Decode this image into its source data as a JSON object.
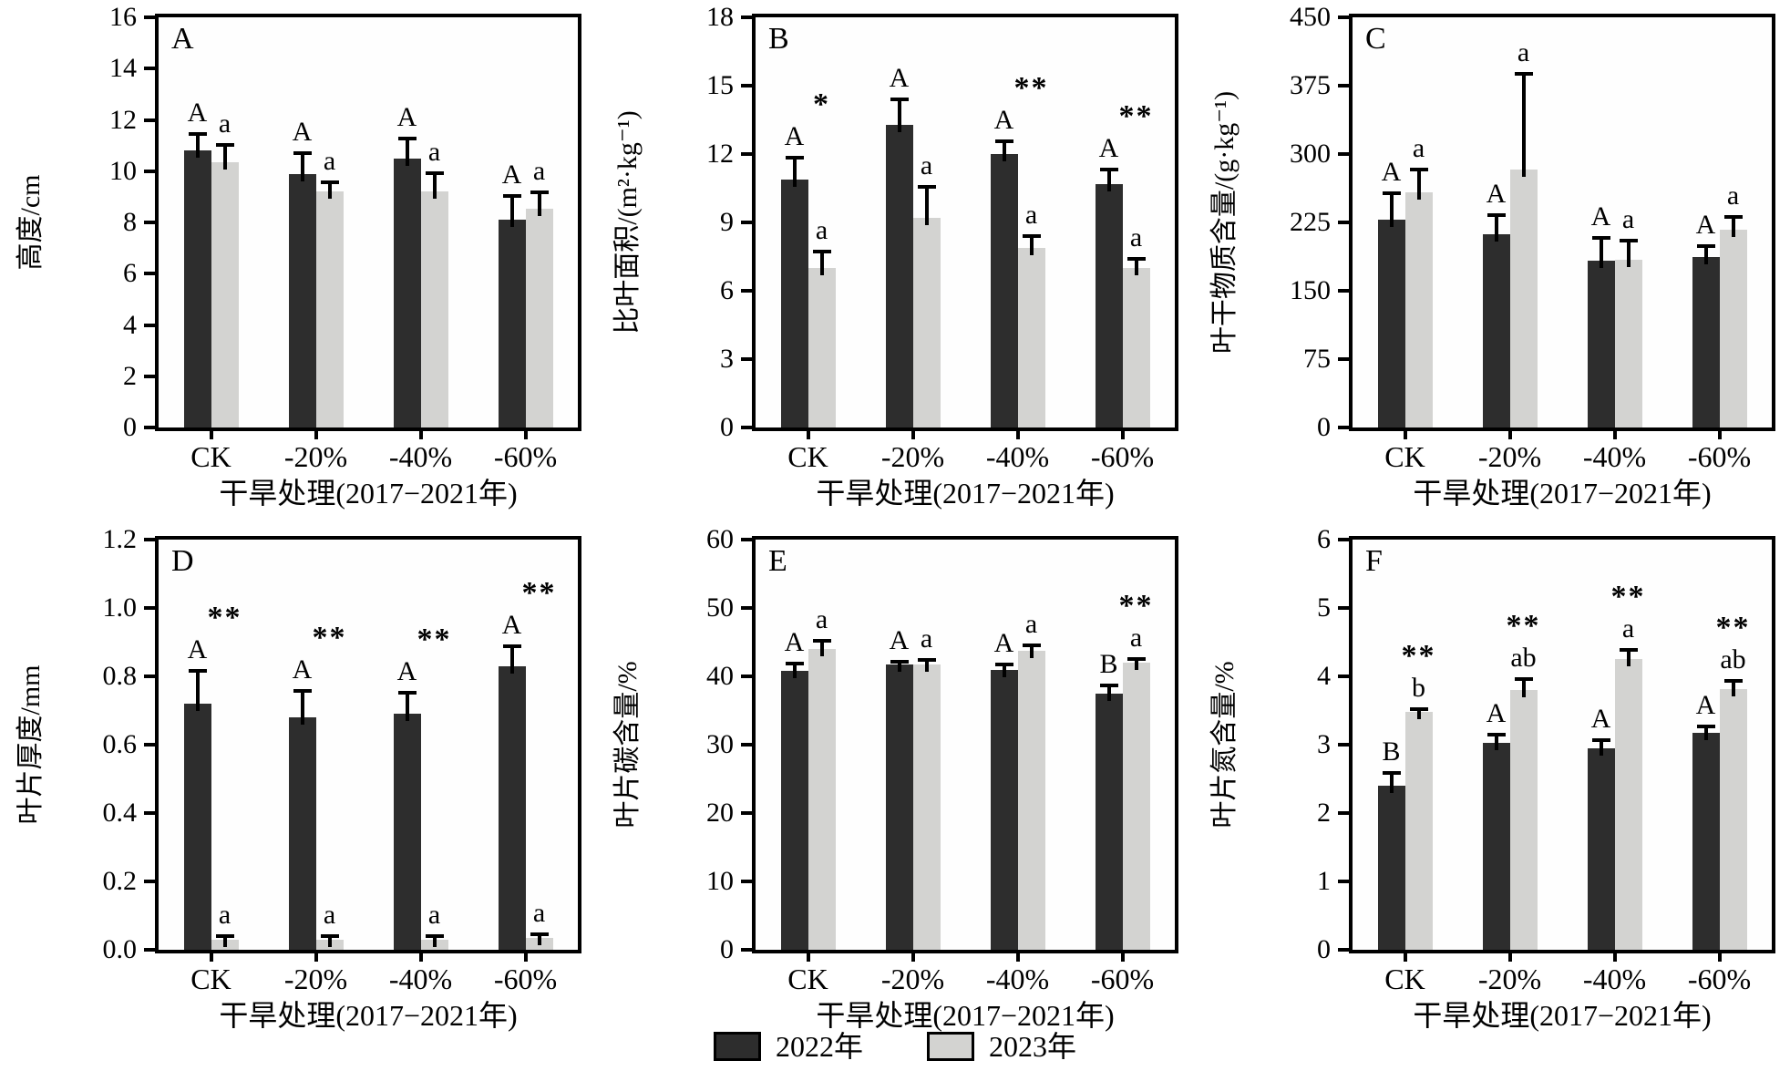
{
  "figure_title": "",
  "colors": {
    "bar_dark": "#2d2d2d",
    "bar_light": "#d3d3d1",
    "axis": "#000000",
    "background": "#ffffff"
  },
  "legend": {
    "items": [
      {
        "label": "2022年",
        "color": "#2d2d2d"
      },
      {
        "label": "2023年",
        "color": "#d3d3d1"
      }
    ]
  },
  "chart_data": [
    {
      "type": "bar",
      "panel_letter": "A",
      "ylabel": "高度/cm",
      "xlabel": "干旱处理(2017−2021年)",
      "ymax": 16,
      "yticks": [
        "0",
        "2",
        "4",
        "6",
        "8",
        "10",
        "12",
        "14",
        "16"
      ],
      "categories": [
        "CK",
        "-20%",
        "-40%",
        "-60%"
      ],
      "series": [
        {
          "name": "2022年",
          "values": [
            10.8,
            9.9,
            10.5,
            8.1
          ],
          "errors": [
            0.7,
            0.85,
            0.8,
            0.95
          ],
          "letters": [
            "A",
            "A",
            "A",
            "A"
          ]
        },
        {
          "name": "2023年",
          "values": [
            10.35,
            9.2,
            9.2,
            8.55
          ],
          "errors": [
            0.7,
            0.4,
            0.75,
            0.65
          ],
          "letters": [
            "a",
            "a",
            "a",
            "a"
          ]
        }
      ],
      "stars": [
        "",
        "",
        "",
        ""
      ]
    },
    {
      "type": "bar",
      "panel_letter": "B",
      "ylabel": "比叶面积/(m²·kg⁻¹)",
      "xlabel": "干旱处理(2017−2021年)",
      "ymax": 18,
      "yticks": [
        "0",
        "3",
        "6",
        "9",
        "12",
        "15",
        "18"
      ],
      "categories": [
        "CK",
        "-20%",
        "-40%",
        "-60%"
      ],
      "series": [
        {
          "name": "2022年",
          "values": [
            10.9,
            13.3,
            12.0,
            10.7
          ],
          "errors": [
            1.0,
            1.15,
            0.6,
            0.65
          ],
          "letters": [
            "A",
            "A",
            "A",
            "A"
          ]
        },
        {
          "name": "2023年",
          "values": [
            7.0,
            9.2,
            7.9,
            7.0
          ],
          "errors": [
            0.75,
            1.4,
            0.55,
            0.45
          ],
          "letters": [
            "a",
            "a",
            "a",
            "a"
          ]
        }
      ],
      "stars": [
        "*",
        "",
        "**",
        "**"
      ]
    },
    {
      "type": "bar",
      "panel_letter": "C",
      "ylabel": "叶干物质含量/(g·kg⁻¹)",
      "xlabel": "干旱处理(2017−2021年)",
      "ymax": 450,
      "yticks": [
        "0",
        "75",
        "150",
        "225",
        "300",
        "375",
        "450"
      ],
      "categories": [
        "CK",
        "-20%",
        "-40%",
        "-60%"
      ],
      "series": [
        {
          "name": "2022年",
          "values": [
            228,
            212,
            183,
            187
          ],
          "errors": [
            30,
            22,
            26,
            13
          ],
          "letters": [
            "A",
            "A",
            "A",
            "A"
          ]
        },
        {
          "name": "2023年",
          "values": [
            258,
            283,
            184,
            217
          ],
          "errors": [
            26,
            106,
            22,
            15
          ],
          "letters": [
            "a",
            "a",
            "a",
            "a"
          ]
        }
      ],
      "stars": [
        "",
        "",
        "",
        ""
      ]
    },
    {
      "type": "bar",
      "panel_letter": "D",
      "ylabel": "叶片厚度/mm",
      "xlabel": "干旱处理(2017−2021年)",
      "ymax": 1.2,
      "yticks": [
        "0.0",
        "0.2",
        "0.4",
        "0.6",
        "0.8",
        "1.0",
        "1.2"
      ],
      "categories": [
        "CK",
        "-20%",
        "-40%",
        "-60%"
      ],
      "series": [
        {
          "name": "2022年",
          "values": [
            0.72,
            0.68,
            0.69,
            0.83
          ],
          "errors": [
            0.1,
            0.08,
            0.065,
            0.06
          ],
          "letters": [
            "A",
            "A",
            "A",
            "A"
          ]
        },
        {
          "name": "2023年",
          "values": [
            0.03,
            0.03,
            0.03,
            0.035
          ],
          "errors": [
            0.012,
            0.012,
            0.012,
            0.012
          ],
          "letters": [
            "a",
            "a",
            "a",
            "a"
          ]
        }
      ],
      "stars": [
        "**",
        "**",
        "**",
        "**"
      ]
    },
    {
      "type": "bar",
      "panel_letter": "E",
      "ylabel": "叶片碳含量/%",
      "xlabel": "干旱处理(2017−2021年)",
      "ymax": 60,
      "yticks": [
        "0",
        "10",
        "20",
        "30",
        "40",
        "50",
        "60"
      ],
      "categories": [
        "CK",
        "-20%",
        "-40%",
        "-60%"
      ],
      "series": [
        {
          "name": "2022年",
          "values": [
            40.8,
            41.8,
            41.0,
            37.5
          ],
          "errors": [
            1.2,
            0.5,
            0.9,
            1.3
          ],
          "letters": [
            "A",
            "A",
            "A",
            "B"
          ]
        },
        {
          "name": "2023年",
          "values": [
            44.0,
            41.8,
            43.7,
            42.0
          ],
          "errors": [
            1.4,
            0.8,
            1.0,
            0.7
          ],
          "letters": [
            "a",
            "a",
            "a",
            "a"
          ]
        }
      ],
      "stars": [
        "",
        "",
        "",
        "**"
      ]
    },
    {
      "type": "bar",
      "panel_letter": "F",
      "ylabel": "叶片氮含量/%",
      "xlabel": "干旱处理(2017−2021年)",
      "ymax": 6,
      "yticks": [
        "0",
        "1",
        "2",
        "3",
        "4",
        "5",
        "6"
      ],
      "categories": [
        "CK",
        "-20%",
        "-40%",
        "-60%"
      ],
      "series": [
        {
          "name": "2022年",
          "values": [
            2.4,
            3.03,
            2.95,
            3.18
          ],
          "errors": [
            0.2,
            0.13,
            0.13,
            0.1
          ],
          "letters": [
            "B",
            "A",
            "A",
            "A"
          ]
        },
        {
          "name": "2023年",
          "values": [
            3.48,
            3.8,
            4.25,
            3.82
          ],
          "errors": [
            0.05,
            0.18,
            0.15,
            0.13
          ],
          "letters": [
            "b",
            "ab",
            "a",
            "ab"
          ]
        }
      ],
      "stars": [
        "**",
        "**",
        "**",
        "**"
      ]
    }
  ]
}
